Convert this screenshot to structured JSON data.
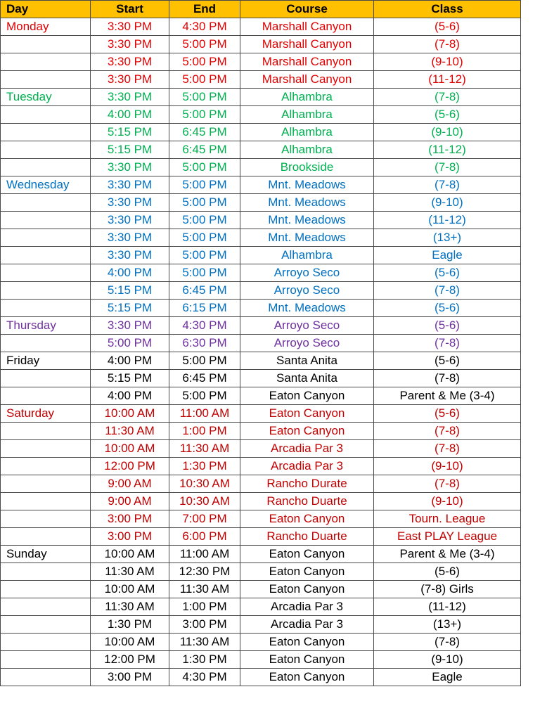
{
  "headers": {
    "day": "Day",
    "start": "Start",
    "end": "End",
    "course": "Course",
    "class": "Class"
  },
  "colors": {
    "header_bg": "#ffc000",
    "monday": "#e00000",
    "tuesday": "#00b050",
    "wednesday": "#0070c0",
    "thursday": "#7030a0",
    "friday": "#000000",
    "saturday": "#c00000",
    "sunday": "#000000"
  },
  "rows": [
    {
      "day": "Monday",
      "start": "3:30 PM",
      "end": "4:30 PM",
      "course": "Marshall Canyon",
      "class": "(5-6)",
      "color": "#e00000"
    },
    {
      "day": "",
      "start": "3:30 PM",
      "end": "5:00 PM",
      "course": "Marshall Canyon",
      "class": "(7-8)",
      "color": "#e00000"
    },
    {
      "day": "",
      "start": "3:30 PM",
      "end": "5:00 PM",
      "course": "Marshall Canyon",
      "class": "(9-10)",
      "color": "#e00000"
    },
    {
      "day": "",
      "start": "3:30 PM",
      "end": "5:00 PM",
      "course": "Marshall Canyon",
      "class": "(11-12)",
      "color": "#e00000"
    },
    {
      "day": "Tuesday",
      "start": "3:30 PM",
      "end": "5:00 PM",
      "course": "Alhambra",
      "class": "(7-8)",
      "color": "#00b050"
    },
    {
      "day": "",
      "start": "4:00 PM",
      "end": "5:00 PM",
      "course": "Alhambra",
      "class": "(5-6)",
      "color": "#00b050"
    },
    {
      "day": "",
      "start": "5:15 PM",
      "end": "6:45 PM",
      "course": "Alhambra",
      "class": "(9-10)",
      "color": "#00b050"
    },
    {
      "day": "",
      "start": "5:15 PM",
      "end": "6:45 PM",
      "course": "Alhambra",
      "class": "(11-12)",
      "color": "#00b050"
    },
    {
      "day": "",
      "start": "3:30 PM",
      "end": "5:00 PM",
      "course": "Brookside",
      "class": "(7-8)",
      "color": "#00b050"
    },
    {
      "day": "Wednesday",
      "start": "3:30 PM",
      "end": "5:00 PM",
      "course": "Mnt. Meadows",
      "class": "(7-8)",
      "color": "#0070c0"
    },
    {
      "day": "",
      "start": "3:30 PM",
      "end": "5:00 PM",
      "course": "Mnt. Meadows",
      "class": "(9-10)",
      "color": "#0070c0"
    },
    {
      "day": "",
      "start": "3:30 PM",
      "end": "5:00 PM",
      "course": "Mnt. Meadows",
      "class": "(11-12)",
      "color": "#0070c0"
    },
    {
      "day": "",
      "start": "3:30 PM",
      "end": "5:00 PM",
      "course": "Mnt. Meadows",
      "class": "(13+)",
      "color": "#0070c0"
    },
    {
      "day": "",
      "start": "3:30 PM",
      "end": "5:00 PM",
      "course": "Alhambra",
      "class": "Eagle",
      "color": "#0070c0"
    },
    {
      "day": "",
      "start": "4:00 PM",
      "end": "5:00 PM",
      "course": "Arroyo Seco",
      "class": "(5-6)",
      "color": "#0070c0"
    },
    {
      "day": "",
      "start": "5:15 PM",
      "end": "6:45 PM",
      "course": "Arroyo Seco",
      "class": "(7-8)",
      "color": "#0070c0"
    },
    {
      "day": "",
      "start": "5:15 PM",
      "end": "6:15 PM",
      "course": "Mnt. Meadows",
      "class": "(5-6)",
      "color": "#0070c0"
    },
    {
      "day": "Thursday",
      "start": "3:30 PM",
      "end": "4:30 PM",
      "course": "Arroyo Seco",
      "class": "(5-6)",
      "color": "#7030a0"
    },
    {
      "day": "",
      "start": "5:00 PM",
      "end": "6:30 PM",
      "course": "Arroyo Seco",
      "class": "(7-8)",
      "color": "#7030a0"
    },
    {
      "day": "Friday",
      "start": "4:00 PM",
      "end": "5:00 PM",
      "course": "Santa Anita",
      "class": "(5-6)",
      "color": "#000000"
    },
    {
      "day": "",
      "start": "5:15 PM",
      "end": "6:45 PM",
      "course": "Santa Anita",
      "class": "(7-8)",
      "color": "#000000"
    },
    {
      "day": "",
      "start": "4:00 PM",
      "end": "5:00 PM",
      "course": "Eaton Canyon",
      "class": "Parent & Me (3-4)",
      "color": "#000000"
    },
    {
      "day": "Saturday",
      "start": "10:00 AM",
      "end": "11:00 AM",
      "course": "Eaton Canyon",
      "class": "(5-6)",
      "color": "#c00000"
    },
    {
      "day": "",
      "start": "11:30 AM",
      "end": "1:00 PM",
      "course": "Eaton Canyon",
      "class": "(7-8)",
      "color": "#c00000"
    },
    {
      "day": "",
      "start": "10:00 AM",
      "end": "11:30 AM",
      "course": "Arcadia Par 3",
      "class": "(7-8)",
      "color": "#c00000"
    },
    {
      "day": "",
      "start": "12:00 PM",
      "end": "1:30 PM",
      "course": "Arcadia Par 3",
      "class": "(9-10)",
      "color": "#c00000"
    },
    {
      "day": "",
      "start": "9:00 AM",
      "end": "10:30 AM",
      "course": "Rancho Durate",
      "class": "(7-8)",
      "color": "#c00000"
    },
    {
      "day": "",
      "start": "9:00 AM",
      "end": "10:30 AM",
      "course": "Rancho Duarte",
      "class": "(9-10)",
      "color": "#c00000"
    },
    {
      "day": "",
      "start": "3:00 PM",
      "end": "7:00 PM",
      "course": "Eaton Canyon",
      "class": "Tourn. League",
      "color": "#c00000"
    },
    {
      "day": "",
      "start": "3:00 PM",
      "end": "6:00 PM",
      "course": "Rancho Duarte",
      "class": "East PLAY League",
      "color": "#c00000"
    },
    {
      "day": "Sunday",
      "start": "10:00 AM",
      "end": "11:00 AM",
      "course": "Eaton Canyon",
      "class": "Parent & Me (3-4)",
      "color": "#000000"
    },
    {
      "day": "",
      "start": "11:30 AM",
      "end": "12:30 PM",
      "course": "Eaton Canyon",
      "class": "(5-6)",
      "color": "#000000"
    },
    {
      "day": "",
      "start": "10:00 AM",
      "end": "11:30 AM",
      "course": "Eaton Canyon",
      "class": "(7-8) Girls",
      "color": "#000000"
    },
    {
      "day": "",
      "start": "11:30 AM",
      "end": "1:00 PM",
      "course": "Arcadia Par 3",
      "class": "(11-12)",
      "color": "#000000"
    },
    {
      "day": "",
      "start": "1:30 PM",
      "end": "3:00 PM",
      "course": "Arcadia Par 3",
      "class": "(13+)",
      "color": "#000000"
    },
    {
      "day": "",
      "start": "10:00 AM",
      "end": "11:30 AM",
      "course": "Eaton Canyon",
      "class": "(7-8)",
      "color": "#000000"
    },
    {
      "day": "",
      "start": "12:00 PM",
      "end": "1:30 PM",
      "course": "Eaton Canyon",
      "class": "(9-10)",
      "color": "#000000"
    },
    {
      "day": "",
      "start": "3:00 PM",
      "end": "4:30 PM",
      "course": "Eaton Canyon",
      "class": "Eagle",
      "color": "#000000"
    }
  ]
}
